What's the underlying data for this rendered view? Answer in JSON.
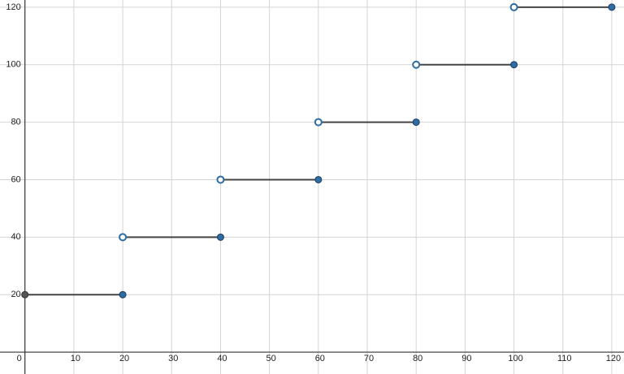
{
  "chart_data": {
    "type": "step",
    "x0": [
      0,
      20,
      40,
      60,
      80,
      100
    ],
    "x1": [
      20,
      40,
      60,
      80,
      100,
      120
    ],
    "values": [
      20,
      40,
      60,
      80,
      100,
      120
    ],
    "left_open": [
      false,
      true,
      true,
      true,
      true,
      true
    ],
    "line_color": "#444444",
    "marker_color": "#2e6da4",
    "first_marker_color": "#555555",
    "xlim": [
      -5.1,
      122.5
    ],
    "ylim": [
      -7.6,
      122.5
    ],
    "xticks": [
      0,
      10,
      20,
      30,
      40,
      50,
      60,
      70,
      80,
      90,
      100,
      110,
      120
    ],
    "yticks": [
      20,
      40,
      60,
      80,
      100,
      120
    ],
    "grid": true
  }
}
